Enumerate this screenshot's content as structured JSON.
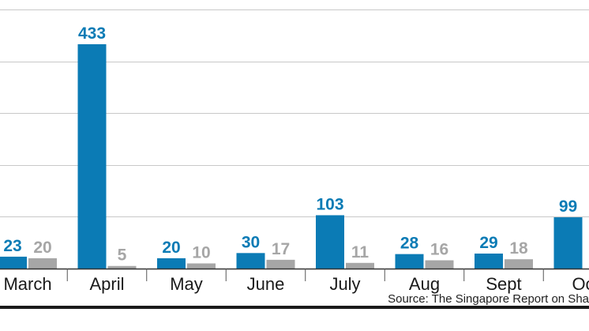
{
  "chart_data": {
    "type": "bar",
    "categories": [
      "March",
      "April",
      "May",
      "June",
      "July",
      "Aug",
      "Sept",
      "Oct"
    ],
    "series": [
      {
        "color": "#0b7bb5",
        "values": [
          23,
          433,
          20,
          30,
          103,
          28,
          29,
          99
        ]
      },
      {
        "color": "#a6a6a6",
        "values": [
          20,
          5,
          10,
          17,
          11,
          16,
          18,
          null
        ]
      }
    ],
    "ylim": [
      0,
      500
    ],
    "grid": true,
    "xlabel": "",
    "ylabel": ""
  },
  "category_labels_shown": [
    "March",
    "April",
    "May",
    "June",
    "July",
    "Aug",
    "Sept",
    "Oc"
  ],
  "source_text": "Source: The Singapore Report on Sha"
}
